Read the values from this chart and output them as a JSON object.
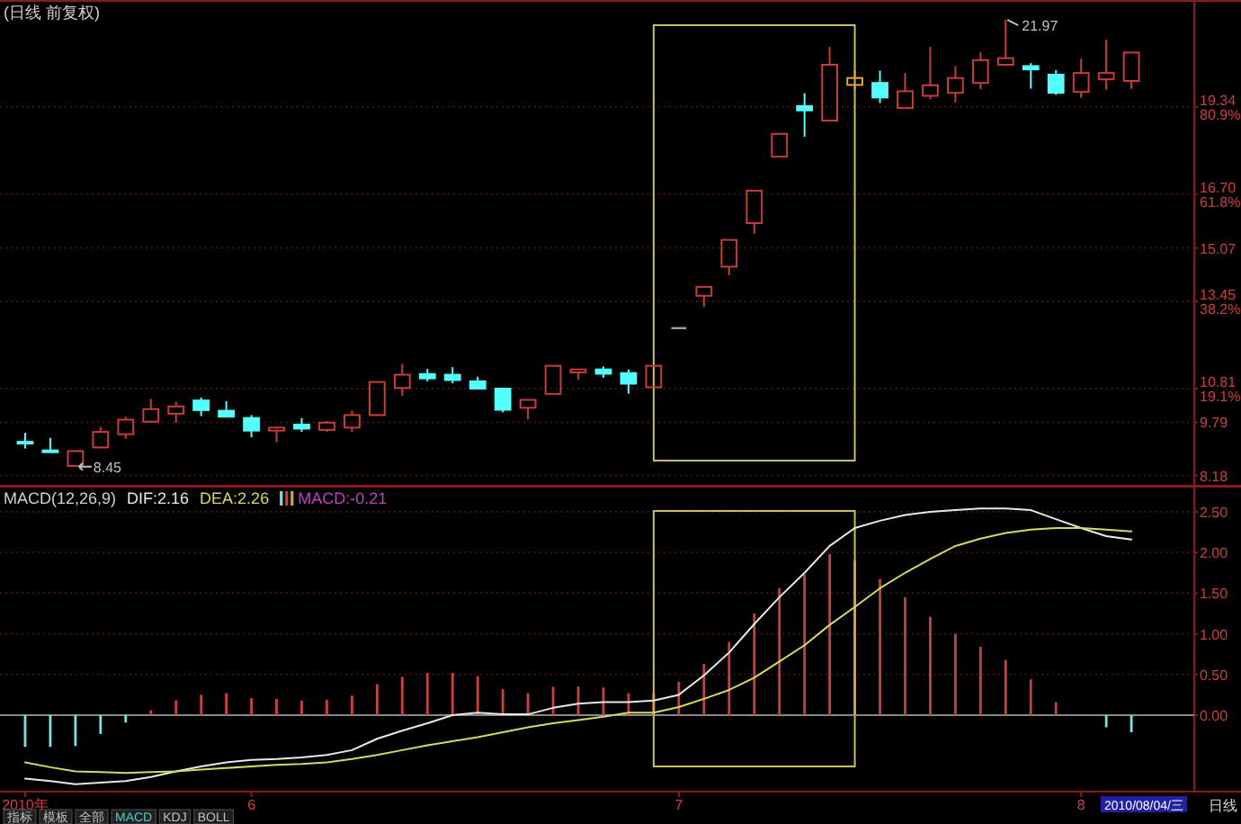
{
  "chart_data": [
    {
      "type": "candlestick",
      "title": "(日线 前复权)",
      "tick_labels": "y",
      "grid": "y",
      "categories": [
        null,
        null,
        null,
        null,
        null,
        null,
        null,
        null,
        null,
        null,
        null,
        null,
        null,
        null,
        null,
        null,
        null,
        null,
        null,
        null,
        null,
        null,
        null,
        null,
        null,
        null,
        null,
        null,
        null,
        null,
        null,
        null,
        null,
        null,
        null,
        null,
        null,
        null,
        null,
        null,
        null,
        null,
        null,
        null,
        null
      ],
      "ohlc": [
        [
          9.2,
          9.47,
          9.0,
          9.18
        ],
        [
          8.94,
          9.32,
          8.9,
          8.92
        ],
        [
          8.47,
          8.94,
          8.45,
          8.92
        ],
        [
          9.03,
          9.65,
          9.0,
          9.5
        ],
        [
          9.43,
          9.96,
          9.29,
          9.87
        ],
        [
          9.81,
          10.5,
          9.78,
          10.19
        ],
        [
          10.05,
          10.41,
          9.78,
          10.27
        ],
        [
          10.45,
          10.54,
          9.98,
          10.16
        ],
        [
          10.14,
          10.43,
          9.95,
          9.96
        ],
        [
          9.92,
          10.01,
          9.34,
          9.54
        ],
        [
          9.54,
          9.65,
          9.19,
          9.63
        ],
        [
          9.72,
          9.92,
          9.5,
          9.6
        ],
        [
          9.56,
          9.83,
          9.5,
          9.78
        ],
        [
          9.63,
          10.14,
          9.5,
          10.01
        ],
        [
          10.01,
          11.03,
          9.98,
          11.01
        ],
        [
          10.83,
          11.56,
          10.59,
          11.23
        ],
        [
          11.25,
          11.41,
          11.03,
          11.12
        ],
        [
          11.23,
          11.46,
          10.97,
          11.07
        ],
        [
          11.03,
          11.17,
          10.81,
          10.81
        ],
        [
          10.81,
          10.81,
          10.09,
          10.17
        ],
        [
          10.23,
          10.47,
          9.88,
          10.47
        ],
        [
          10.65,
          11.5,
          10.65,
          11.5
        ],
        [
          11.3,
          11.4,
          11.08,
          11.39
        ],
        [
          11.39,
          11.48,
          11.14,
          11.26
        ],
        [
          11.28,
          11.39,
          10.66,
          10.96
        ],
        [
          10.85,
          11.5,
          10.85,
          11.5
        ],
        [
          12.64,
          12.64,
          12.64,
          12.64
        ],
        [
          13.62,
          13.89,
          13.28,
          13.89
        ],
        [
          14.5,
          15.31,
          14.24,
          15.31
        ],
        [
          15.82,
          16.8,
          15.49,
          16.8
        ],
        [
          17.83,
          18.52,
          17.83,
          18.52
        ],
        [
          19.36,
          19.75,
          18.43,
          19.23
        ],
        [
          18.92,
          21.15,
          18.92,
          20.61
        ],
        [
          20.0,
          20.45,
          19.85,
          20.21
        ],
        [
          20.06,
          20.43,
          19.45,
          19.62
        ],
        [
          19.3,
          20.36,
          19.3,
          19.81
        ],
        [
          19.67,
          21.15,
          19.57,
          19.99
        ],
        [
          19.76,
          20.57,
          19.47,
          20.21
        ],
        [
          20.06,
          20.99,
          19.87,
          20.75
        ],
        [
          20.61,
          21.97,
          20.61,
          20.81
        ],
        [
          20.57,
          20.66,
          19.89,
          20.47
        ],
        [
          20.31,
          20.45,
          19.7,
          19.76
        ],
        [
          19.79,
          20.79,
          19.61,
          20.36
        ],
        [
          20.17,
          21.37,
          19.85,
          20.36
        ],
        [
          20.12,
          20.98,
          19.88,
          20.98
        ]
      ],
      "colors": [
        "#54ffff",
        "#54ffff",
        "#c83c3c",
        "#c83c3c",
        "#c83c3c",
        "#c83c3c",
        "#c83c3c",
        "#54ffff",
        "#54ffff",
        "#54ffff",
        "#c83c3c",
        "#54ffff",
        "#c83c3c",
        "#c83c3c",
        "#c83c3c",
        "#c83c3c",
        "#54ffff",
        "#54ffff",
        "#54ffff",
        "#54ffff",
        "#c83c3c",
        "#c83c3c",
        "#c83c3c",
        "#54ffff",
        "#54ffff",
        "#c83c3c",
        "#a0a0a0",
        "#c83c3c",
        "#c83c3c",
        "#c83c3c",
        "#c83c3c",
        "#54ffff",
        "#c83c3c",
        "#e0a040",
        "#54ffff",
        "#c83c3c",
        "#c83c3c",
        "#c83c3c",
        "#c83c3c",
        "#c83c3c",
        "#54ffff",
        "#54ffff",
        "#c83c3c",
        "#c83c3c",
        "#c83c3c"
      ],
      "ylim": [
        7.87,
        22.57
      ],
      "yticks": [
        8.18,
        9.79,
        {
          "value": 10.81,
          "label": "10.81 19.1%"
        },
        {
          "value": 13.45,
          "label": "13.45 38.2%"
        },
        15.07,
        {
          "value": 16.7,
          "label": "16.70 61.8%"
        },
        {
          "value": 19.34,
          "label": "19.34 80.9%"
        }
      ],
      "annotations": [
        "21.97",
        "8.45"
      ]
    },
    {
      "type": "bar",
      "title": "MACD(12,26,9)",
      "grid": "y",
      "legend": "top left",
      "categories": [
        "2010年",
        null,
        null,
        null,
        null,
        null,
        null,
        null,
        null,
        "6",
        null,
        null,
        null,
        null,
        null,
        null,
        null,
        null,
        null,
        null,
        null,
        null,
        null,
        null,
        null,
        null,
        "7",
        null,
        null,
        null,
        null,
        null,
        null,
        null,
        null,
        null,
        null,
        null,
        null,
        null,
        null,
        null,
        "8",
        null,
        null
      ],
      "series": [
        {
          "name": "DIF:2.16",
          "type": "line",
          "color": "#e8e8e8",
          "values": [
            -0.78,
            -0.81,
            -0.85,
            -0.83,
            -0.81,
            -0.76,
            -0.69,
            -0.63,
            -0.58,
            -0.55,
            -0.54,
            -0.52,
            -0.49,
            -0.43,
            -0.29,
            -0.19,
            -0.1,
            0.0,
            0.03,
            0.01,
            0.01,
            0.09,
            0.14,
            0.16,
            0.16,
            0.18,
            0.25,
            0.49,
            0.77,
            1.12,
            1.45,
            1.75,
            2.08,
            2.3,
            2.39,
            2.46,
            2.5,
            2.52,
            2.54,
            2.54,
            2.52,
            2.41,
            2.3,
            2.2,
            2.16
          ]
        },
        {
          "name": "DEA:2.26",
          "type": "line",
          "color": "#d8d860",
          "values": [
            -0.58,
            -0.64,
            -0.69,
            -0.7,
            -0.71,
            -0.7,
            -0.69,
            -0.67,
            -0.65,
            -0.63,
            -0.61,
            -0.6,
            -0.58,
            -0.54,
            -0.49,
            -0.43,
            -0.37,
            -0.32,
            -0.27,
            -0.21,
            -0.15,
            -0.1,
            -0.06,
            -0.02,
            0.03,
            0.03,
            0.1,
            0.2,
            0.31,
            0.46,
            0.66,
            0.86,
            1.11,
            1.33,
            1.56,
            1.75,
            1.92,
            2.08,
            2.17,
            2.24,
            2.28,
            2.3,
            2.3,
            2.28,
            2.26
          ]
        },
        {
          "name": "MACD:-0.21",
          "type": "bar",
          "color": "#c040c0",
          "values": [
            -0.39,
            -0.39,
            -0.38,
            -0.23,
            -0.09,
            0.06,
            0.18,
            0.25,
            0.27,
            0.21,
            0.2,
            0.18,
            0.19,
            0.24,
            0.38,
            0.47,
            0.52,
            0.52,
            0.48,
            0.32,
            0.27,
            0.35,
            0.35,
            0.34,
            0.27,
            0.27,
            0.41,
            0.63,
            0.9,
            1.25,
            1.56,
            1.73,
            1.98,
            1.9,
            1.67,
            1.45,
            1.21,
            1.0,
            0.84,
            0.68,
            0.44,
            0.16,
            null,
            -0.15,
            -0.21
          ],
          "colors": [
            "#80e0e0",
            "#80e0e0",
            "#80e0e0",
            "#80e0e0",
            "#80e0e0",
            "#c84040",
            "#c84040",
            "#c84040",
            "#c84040",
            "#c84040",
            "#c84040",
            "#c84040",
            "#c84040",
            "#c84040",
            "#c84040",
            "#c84040",
            "#c84040",
            "#c84040",
            "#c84040",
            "#c84040",
            "#c84040",
            "#c84040",
            "#c84040",
            "#c84040",
            "#c84040",
            "#e0a040",
            "#c84040",
            "#c84040",
            "#c84040",
            "#c84040",
            "#c84040",
            "#c84040",
            "#c84040",
            "#e0a040",
            "#c84040",
            "#c84040",
            "#c84040",
            "#c84040",
            "#c84040",
            "#c84040",
            "#c84040",
            "#c84040",
            null,
            "#80e0e0",
            "#80e0e0"
          ]
        }
      ],
      "ylim": [
        -0.94,
        2.82
      ],
      "yticks": [
        {
          "value": 0,
          "label": "0.00"
        },
        {
          "value": 0.5,
          "label": "0.50"
        },
        {
          "value": 1,
          "label": "1.00"
        },
        {
          "value": 1.5,
          "label": "1.50"
        },
        {
          "value": 2,
          "label": "2.00"
        },
        {
          "value": 2.5,
          "label": "2.50"
        }
      ],
      "annotations": [
        "2010/08/04/三",
        "日线",
        "指标",
        "模板",
        "全部",
        "MACD",
        "KDJ",
        "BOLL"
      ]
    }
  ]
}
